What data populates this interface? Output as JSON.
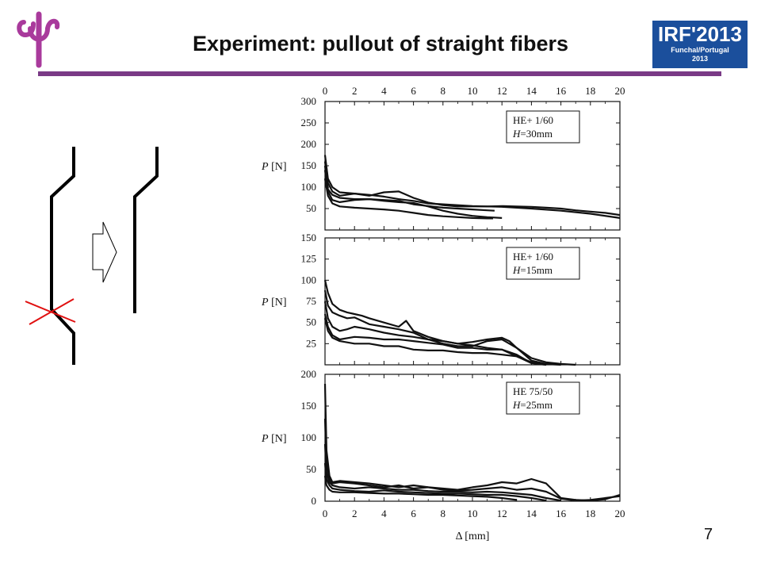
{
  "slide": {
    "title": "Experiment: pullout of straight fibers",
    "page_number": "7"
  },
  "conference_logo": {
    "line1": "IRF'2013",
    "line2": "Funchal/Portugal",
    "line3": "2013",
    "color": "#1b4f9c"
  },
  "university_logo": {
    "icon": "psi-logo-icon",
    "color": "#a93a9c"
  },
  "accent_color": "#7a3a86",
  "chart_data": [
    {
      "type": "line",
      "ylabel": "P [N]",
      "xlabel": "Δ [mm]",
      "x_ticks": [
        "0",
        "2",
        "4",
        "6",
        "8",
        "10",
        "12",
        "14",
        "16",
        "18",
        "20"
      ],
      "y_ticks": [
        "50",
        "100",
        "150",
        "200",
        "250",
        "300"
      ],
      "ylim": [
        0,
        300
      ],
      "xlim": [
        0,
        20
      ],
      "legend": {
        "line1": "HE+ 1/60",
        "line2_italic": "H",
        "line2_rest": "=30mm"
      },
      "series": [
        {
          "x": [
            0,
            0.2,
            0.5,
            1,
            2,
            3,
            4,
            5,
            6,
            7,
            8,
            9,
            10,
            11,
            12,
            14,
            16,
            18,
            20
          ],
          "y": [
            175,
            120,
            100,
            88,
            85,
            82,
            78,
            72,
            68,
            62,
            60,
            58,
            56,
            55,
            54,
            50,
            45,
            38,
            28
          ]
        },
        {
          "x": [
            0,
            0.2,
            0.5,
            1,
            2,
            3,
            4,
            5,
            6,
            7,
            8,
            9,
            10,
            11,
            12,
            13,
            14,
            15,
            16,
            17,
            18,
            19,
            20
          ],
          "y": [
            160,
            110,
            90,
            80,
            85,
            80,
            88,
            90,
            75,
            64,
            58,
            55,
            55,
            55,
            56,
            55,
            54,
            52,
            50,
            46,
            43,
            40,
            35
          ]
        },
        {
          "x": [
            0,
            0.2,
            0.5,
            1,
            2,
            3,
            4,
            5,
            6,
            7,
            8,
            9,
            10,
            11,
            11.5
          ],
          "y": [
            150,
            95,
            82,
            75,
            72,
            72,
            70,
            68,
            60,
            56,
            52,
            50,
            48,
            46,
            45
          ]
        },
        {
          "x": [
            0,
            0.2,
            0.5,
            1,
            2,
            3,
            4,
            5,
            6,
            7,
            8,
            9,
            10,
            11,
            12
          ],
          "y": [
            140,
            90,
            70,
            65,
            70,
            72,
            68,
            65,
            63,
            55,
            45,
            38,
            33,
            30,
            28
          ]
        },
        {
          "x": [
            0,
            0.2,
            0.5,
            1,
            2,
            3,
            4,
            5,
            6,
            7,
            8,
            9,
            10,
            11,
            11.4
          ],
          "y": [
            120,
            80,
            62,
            55,
            52,
            50,
            48,
            45,
            40,
            35,
            32,
            30,
            28,
            27,
            27
          ]
        }
      ]
    },
    {
      "type": "line",
      "ylabel": "P [N]",
      "x_ticks": [
        "0",
        "2",
        "4",
        "6",
        "8",
        "10",
        "12",
        "14",
        "16",
        "18",
        "20"
      ],
      "y_ticks": [
        "25",
        "50",
        "75",
        "100",
        "125",
        "150"
      ],
      "ylim": [
        0,
        150
      ],
      "xlim": [
        0,
        20
      ],
      "legend": {
        "line1": "HE+ 1/60",
        "line2_italic": "H",
        "line2_rest": "=15mm"
      },
      "series": [
        {
          "x": [
            0,
            0.2,
            0.5,
            1,
            1.5,
            2,
            2.5,
            3,
            4,
            5,
            5.5,
            6,
            7,
            8,
            9,
            10,
            11,
            12,
            12.5,
            13,
            14,
            15,
            16,
            17
          ],
          "y": [
            100,
            85,
            72,
            65,
            62,
            60,
            58,
            55,
            50,
            45,
            52,
            40,
            33,
            28,
            25,
            27,
            30,
            32,
            28,
            20,
            8,
            3,
            1,
            0
          ]
        },
        {
          "x": [
            0,
            0.2,
            0.5,
            1,
            1.5,
            2,
            3,
            4,
            5,
            6,
            7,
            8,
            9,
            10,
            11,
            12,
            13,
            14,
            15,
            16
          ],
          "y": [
            88,
            70,
            62,
            58,
            55,
            56,
            48,
            45,
            42,
            38,
            30,
            25,
            22,
            22,
            28,
            30,
            20,
            5,
            1,
            0
          ]
        },
        {
          "x": [
            0,
            0.2,
            0.5,
            1,
            1.5,
            2,
            3,
            4,
            5,
            6,
            7,
            8,
            9,
            10,
            11,
            12,
            13,
            14,
            15
          ],
          "y": [
            75,
            55,
            45,
            40,
            42,
            45,
            42,
            38,
            35,
            33,
            30,
            28,
            25,
            23,
            20,
            18,
            10,
            3,
            0
          ]
        },
        {
          "x": [
            0,
            0.2,
            0.5,
            1,
            2,
            3,
            4,
            5,
            6,
            7,
            8,
            9,
            10,
            11,
            12,
            13,
            14,
            15
          ],
          "y": [
            60,
            45,
            35,
            30,
            33,
            32,
            30,
            30,
            28,
            26,
            24,
            20,
            20,
            18,
            18,
            12,
            2,
            0
          ]
        },
        {
          "x": [
            0,
            0.2,
            0.5,
            1,
            2,
            3,
            4,
            5,
            6,
            7,
            8,
            9,
            10,
            11,
            12,
            13,
            14
          ],
          "y": [
            55,
            40,
            32,
            28,
            25,
            25,
            22,
            22,
            18,
            17,
            17,
            15,
            14,
            14,
            12,
            10,
            2
          ]
        }
      ]
    },
    {
      "type": "line",
      "ylabel": "P [N]",
      "xlabel": "Δ [mm]",
      "x_ticks": [
        "0",
        "2",
        "4",
        "6",
        "8",
        "10",
        "12",
        "14",
        "16",
        "18",
        "20"
      ],
      "y_ticks": [
        "0",
        "50",
        "100",
        "150",
        "200"
      ],
      "ylim": [
        0,
        200
      ],
      "xlim": [
        0,
        20
      ],
      "legend": {
        "line1": "HE 75/50",
        "line2_italic": "H",
        "line2_rest": "=25mm"
      },
      "series": [
        {
          "x": [
            0,
            0.1,
            0.3,
            0.5,
            1,
            2,
            3,
            4,
            5,
            6,
            7,
            8,
            9,
            10,
            11,
            12,
            13,
            14,
            15,
            16,
            17,
            18,
            19,
            20
          ],
          "y": [
            185,
            80,
            40,
            30,
            32,
            30,
            28,
            25,
            22,
            25,
            22,
            20,
            18,
            22,
            25,
            30,
            28,
            35,
            28,
            5,
            2,
            1,
            3,
            10
          ]
        },
        {
          "x": [
            0,
            0.1,
            0.3,
            0.5,
            1,
            2,
            3,
            4,
            5,
            6,
            7,
            8,
            9,
            10,
            11,
            12,
            13,
            14,
            15,
            16,
            17,
            18,
            19,
            20
          ],
          "y": [
            130,
            60,
            35,
            28,
            30,
            28,
            25,
            22,
            25,
            20,
            22,
            18,
            17,
            18,
            20,
            22,
            18,
            20,
            15,
            4,
            1,
            2,
            5,
            8
          ]
        },
        {
          "x": [
            0,
            0.1,
            0.3,
            0.5,
            1,
            2,
            3,
            4,
            5,
            6,
            7,
            8,
            9,
            10,
            11,
            12,
            13,
            14,
            15,
            16
          ],
          "y": [
            90,
            45,
            30,
            25,
            22,
            20,
            22,
            20,
            18,
            18,
            16,
            15,
            15,
            14,
            15,
            14,
            12,
            10,
            5,
            1
          ]
        },
        {
          "x": [
            0,
            0.1,
            0.3,
            0.5,
            1,
            2,
            3,
            4,
            5,
            6,
            7,
            8,
            9,
            10,
            11,
            12,
            13,
            14,
            15
          ],
          "y": [
            60,
            35,
            25,
            20,
            18,
            16,
            15,
            17,
            15,
            14,
            13,
            12,
            12,
            11,
            10,
            10,
            8,
            5,
            1
          ]
        },
        {
          "x": [
            0,
            0.1,
            0.3,
            0.5,
            1,
            2,
            3,
            4,
            5,
            6,
            7,
            8,
            9,
            10,
            11,
            12,
            13
          ],
          "y": [
            40,
            25,
            18,
            15,
            14,
            14,
            13,
            12,
            12,
            11,
            10,
            10,
            9,
            8,
            7,
            5,
            2
          ]
        }
      ]
    }
  ]
}
